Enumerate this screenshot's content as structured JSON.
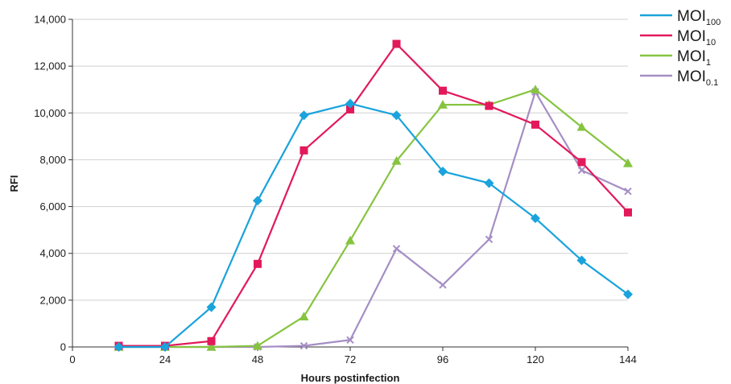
{
  "chart_data": {
    "type": "line",
    "xlabel": "Hours postinfection",
    "ylabel": "RFI",
    "xlim": [
      0,
      144
    ],
    "ylim": [
      0,
      14000
    ],
    "x_ticks": [
      0,
      24,
      48,
      72,
      96,
      120,
      144
    ],
    "x_tick_labels": [
      "0",
      "24",
      "48",
      "72",
      "96",
      "120",
      "144"
    ],
    "y_ticks": [
      0,
      2000,
      4000,
      6000,
      8000,
      10000,
      12000,
      14000
    ],
    "y_tick_labels": [
      "0",
      "2,000",
      "4,000",
      "6,000",
      "8,000",
      "10,000",
      "12,000",
      "14,000"
    ],
    "grid": "horizontal",
    "legend_position": "top-right",
    "x": [
      12,
      24,
      36,
      48,
      60,
      72,
      84,
      96,
      108,
      120,
      132,
      144
    ],
    "series": [
      {
        "name": "MOI100",
        "legend_main": "MOI",
        "legend_sub": "100",
        "color": "#1aa3dc",
        "marker": "diamond",
        "values": [
          0,
          0,
          1700,
          6250,
          9900,
          10400,
          9900,
          7500,
          7000,
          5500,
          3700,
          2250
        ]
      },
      {
        "name": "MOI10",
        "legend_main": "MOI",
        "legend_sub": "10",
        "color": "#e2195a",
        "marker": "square",
        "values": [
          50,
          50,
          250,
          3550,
          8400,
          10150,
          12950,
          10950,
          10300,
          9500,
          7900,
          5750
        ]
      },
      {
        "name": "MOI1",
        "legend_main": "MOI",
        "legend_sub": "1",
        "color": "#86c440",
        "marker": "triangle",
        "values": [
          0,
          0,
          0,
          50,
          1300,
          4550,
          7950,
          10350,
          10350,
          11000,
          9400,
          7850
        ]
      },
      {
        "name": "MOI0.1",
        "legend_main": "MOI",
        "legend_sub": "0.1",
        "color": "#a58ec4",
        "marker": "x",
        "values": [
          0,
          0,
          0,
          0,
          50,
          300,
          4200,
          2650,
          4600,
          10900,
          7550,
          6650
        ]
      }
    ]
  }
}
